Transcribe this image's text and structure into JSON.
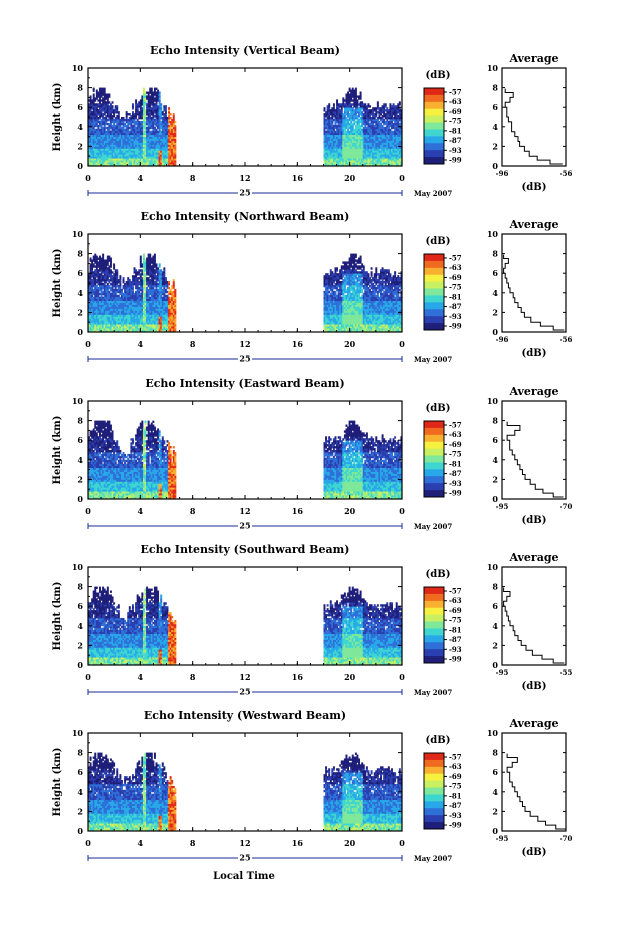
{
  "colors": {
    "scale": [
      "#1f1f7a",
      "#2b3fb0",
      "#2f6fd8",
      "#28a8e8",
      "#3fd6d0",
      "#7fe89a",
      "#c8f060",
      "#f6f040",
      "#f9b030",
      "#f06a20",
      "#e02818"
    ],
    "frame": "#000000",
    "axis_marker": "#1a2a9a"
  },
  "common": {
    "ylabel": "Height (km)",
    "cbar_unit": "(dB)",
    "cbar_ticks": [
      "-57",
      "-63",
      "-69",
      "-75",
      "-81",
      "-87",
      "-93",
      "-99"
    ],
    "x_ticks": [
      "0",
      "4",
      "8",
      "12",
      "16",
      "20",
      "0"
    ],
    "day_label": "25",
    "month_label": "May 2007",
    "avg_title": "Average",
    "avg_xlabel": "(dB)",
    "xlabel": "Local Time"
  },
  "chart_data": [
    {
      "type": "heatmap",
      "title": "Echo Intensity (Vertical Beam)",
      "ylabel": "Height (km)",
      "xlim": [
        0,
        24
      ],
      "ylim": [
        0,
        10
      ],
      "y_ticks": [
        0,
        2,
        4,
        6,
        8,
        10
      ],
      "colorbar": {
        "unit": "(dB)",
        "range": [
          -99,
          -57
        ]
      },
      "data_segments": [
        [
          0,
          6.7
        ],
        [
          18,
          24
        ]
      ],
      "average_profile": {
        "title": "Average",
        "xlabel": "(dB)",
        "x_ticks": [
          "-96",
          "-56"
        ],
        "xlim": [
          -96,
          -56
        ],
        "height": [
          0.2,
          0.6,
          1.0,
          1.5,
          2.0,
          2.5,
          3.0,
          3.5,
          4.0,
          4.5,
          5.0,
          5.5,
          6.0,
          6.5,
          7.0,
          7.5,
          7.9
        ],
        "value": [
          -58,
          -66,
          -74,
          -79,
          -82,
          -85,
          -86,
          -88,
          -90,
          -90,
          -92,
          -93,
          -93,
          -94,
          -91,
          -89,
          -94
        ]
      }
    },
    {
      "type": "heatmap",
      "title": "Echo Intensity (Northward Beam)",
      "ylabel": "Height (km)",
      "xlim": [
        0,
        24
      ],
      "ylim": [
        0,
        10
      ],
      "y_ticks": [
        0,
        2,
        4,
        6,
        8,
        10
      ],
      "colorbar": {
        "unit": "(dB)",
        "range": [
          -99,
          -57
        ]
      },
      "data_segments": [
        [
          0,
          6.7
        ],
        [
          18,
          24
        ]
      ],
      "average_profile": {
        "title": "Average",
        "xlabel": "(dB)",
        "x_ticks": [
          "-96",
          "-56"
        ],
        "xlim": [
          -96,
          -56
        ],
        "height": [
          0.2,
          0.6,
          1.0,
          1.5,
          2.0,
          2.5,
          3.0,
          3.5,
          4.0,
          4.5,
          5.0,
          5.5,
          6.0,
          6.5,
          7.0,
          7.5,
          7.9
        ],
        "value": [
          -57,
          -64,
          -72,
          -78,
          -82,
          -84,
          -86,
          -88,
          -89,
          -91,
          -92,
          -93,
          -94,
          -95,
          -94,
          -92,
          -95
        ]
      }
    },
    {
      "type": "heatmap",
      "title": "Echo Intensity (Eastward Beam)",
      "ylabel": "Height (km)",
      "xlim": [
        0,
        24
      ],
      "ylim": [
        0,
        10
      ],
      "y_ticks": [
        0,
        2,
        4,
        6,
        8,
        10
      ],
      "colorbar": {
        "unit": "(dB)",
        "range": [
          -99,
          -57
        ]
      },
      "data_segments": [
        [
          0,
          6.7
        ],
        [
          18,
          24
        ]
      ],
      "average_profile": {
        "title": "Average",
        "xlabel": "(dB)",
        "x_ticks": [
          "-95",
          "-70"
        ],
        "xlim": [
          -95,
          -70
        ],
        "height": [
          0.2,
          0.6,
          1.0,
          1.5,
          2.0,
          2.5,
          3.0,
          3.5,
          4.0,
          4.5,
          5.0,
          5.5,
          6.0,
          6.5,
          7.0,
          7.5,
          7.9
        ],
        "value": [
          -71,
          -75,
          -79,
          -82,
          -84,
          -86,
          -87,
          -88,
          -89,
          -90,
          -91,
          -92,
          -92,
          -93,
          -90,
          -88,
          -93
        ]
      }
    },
    {
      "type": "heatmap",
      "title": "Echo Intensity (Southward Beam)",
      "ylabel": "Height (km)",
      "xlim": [
        0,
        24
      ],
      "ylim": [
        0,
        10
      ],
      "y_ticks": [
        0,
        2,
        4,
        6,
        8,
        10
      ],
      "colorbar": {
        "unit": "(dB)",
        "range": [
          -99,
          -57
        ]
      },
      "data_segments": [
        [
          0,
          6.7
        ],
        [
          18,
          24
        ]
      ],
      "average_profile": {
        "title": "Average",
        "xlabel": "(dB)",
        "x_ticks": [
          "-95",
          "-55"
        ],
        "xlim": [
          -95,
          -55
        ],
        "height": [
          0.2,
          0.6,
          1.0,
          1.5,
          2.0,
          2.5,
          3.0,
          3.5,
          4.0,
          4.5,
          5.0,
          5.5,
          6.0,
          6.5,
          7.0,
          7.5,
          7.9
        ],
        "value": [
          -56,
          -63,
          -70,
          -76,
          -80,
          -83,
          -85,
          -87,
          -88,
          -90,
          -91,
          -92,
          -93,
          -94,
          -92,
          -90,
          -94
        ]
      }
    },
    {
      "type": "heatmap",
      "title": "Echo Intensity (Westward Beam)",
      "ylabel": "Height (km)",
      "xlim": [
        0,
        24
      ],
      "ylim": [
        0,
        10
      ],
      "y_ticks": [
        0,
        2,
        4,
        6,
        8,
        10
      ],
      "colorbar": {
        "unit": "(dB)",
        "range": [
          -99,
          -57
        ]
      },
      "data_segments": [
        [
          0,
          6.7
        ],
        [
          18,
          24
        ]
      ],
      "average_profile": {
        "title": "Average",
        "xlabel": "(dB)",
        "x_ticks": [
          "-95",
          "-70"
        ],
        "xlim": [
          -95,
          -70
        ],
        "height": [
          0.2,
          0.6,
          1.0,
          1.5,
          2.0,
          2.5,
          3.0,
          3.5,
          4.0,
          4.5,
          5.0,
          5.5,
          6.0,
          6.5,
          7.0,
          7.5,
          7.9
        ],
        "value": [
          -70,
          -74,
          -78,
          -81,
          -84,
          -86,
          -87,
          -88,
          -89,
          -90,
          -91,
          -92,
          -92,
          -93,
          -91,
          -89,
          -93
        ]
      }
    }
  ]
}
